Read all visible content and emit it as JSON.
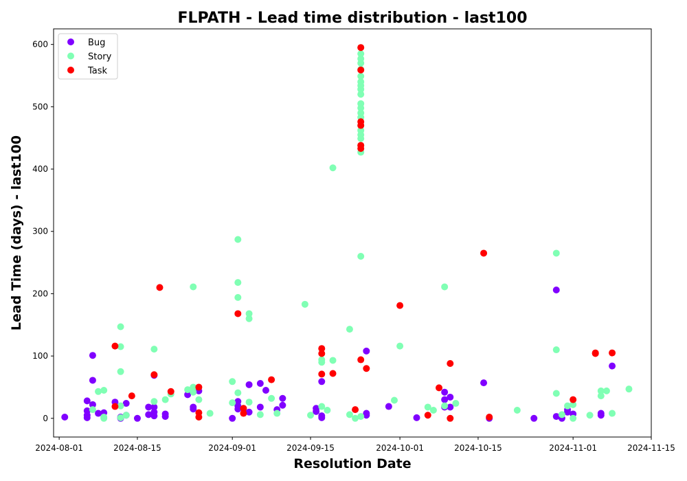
{
  "chart_data": {
    "type": "scatter",
    "title": "FLPATH - Lead time distribution - last100",
    "xlabel": "Resolution Date",
    "ylabel": "Lead Time (days) - last100",
    "x_scale": "date",
    "xlim": [
      "2024-07-31",
      "2024-11-15"
    ],
    "ylim": [
      -30,
      625
    ],
    "x_ticks": [
      "2024-08-01",
      "2024-08-15",
      "2024-09-01",
      "2024-09-15",
      "2024-10-01",
      "2024-10-15",
      "2024-11-01",
      "2024-11-15"
    ],
    "y_ticks": [
      0,
      100,
      200,
      300,
      400,
      500,
      600
    ],
    "grid": false,
    "legend_position": "top-left",
    "series": [
      {
        "name": "Bug",
        "color": "#8000ff",
        "points": [
          [
            "2024-08-02",
            2
          ],
          [
            "2024-08-06",
            28
          ],
          [
            "2024-08-06",
            12
          ],
          [
            "2024-08-06",
            5
          ],
          [
            "2024-08-06",
            1
          ],
          [
            "2024-08-07",
            101
          ],
          [
            "2024-08-07",
            61
          ],
          [
            "2024-08-07",
            22
          ],
          [
            "2024-08-08",
            8
          ],
          [
            "2024-08-09",
            9
          ],
          [
            "2024-08-11",
            26
          ],
          [
            "2024-08-12",
            2
          ],
          [
            "2024-08-12",
            0
          ],
          [
            "2024-08-13",
            24
          ],
          [
            "2024-08-13",
            5
          ],
          [
            "2024-08-15",
            0
          ],
          [
            "2024-08-17",
            18
          ],
          [
            "2024-08-17",
            6
          ],
          [
            "2024-08-18",
            4
          ],
          [
            "2024-08-18",
            10
          ],
          [
            "2024-08-18",
            18
          ],
          [
            "2024-08-18",
            69
          ],
          [
            "2024-08-20",
            7
          ],
          [
            "2024-08-20",
            3
          ],
          [
            "2024-08-24",
            38
          ],
          [
            "2024-08-25",
            15
          ],
          [
            "2024-08-25",
            18
          ],
          [
            "2024-08-26",
            44
          ],
          [
            "2024-09-01",
            0
          ],
          [
            "2024-09-02",
            27
          ],
          [
            "2024-09-02",
            15
          ],
          [
            "2024-09-02",
            20
          ],
          [
            "2024-09-04",
            54
          ],
          [
            "2024-09-04",
            10
          ],
          [
            "2024-09-06",
            56
          ],
          [
            "2024-09-06",
            18
          ],
          [
            "2024-09-07",
            45
          ],
          [
            "2024-09-09",
            14
          ],
          [
            "2024-09-10",
            32
          ],
          [
            "2024-09-10",
            21
          ],
          [
            "2024-09-16",
            16
          ],
          [
            "2024-09-16",
            11
          ],
          [
            "2024-09-17",
            59
          ],
          [
            "2024-09-17",
            4
          ],
          [
            "2024-09-17",
            1
          ],
          [
            "2024-09-25",
            108
          ],
          [
            "2024-09-25",
            8
          ],
          [
            "2024-09-25",
            5
          ],
          [
            "2024-09-29",
            19
          ],
          [
            "2024-10-04",
            1
          ],
          [
            "2024-10-09",
            42
          ],
          [
            "2024-10-09",
            30
          ],
          [
            "2024-10-09",
            18
          ],
          [
            "2024-10-10",
            34
          ],
          [
            "2024-10-10",
            18
          ],
          [
            "2024-10-16",
            57
          ],
          [
            "2024-10-17",
            0
          ],
          [
            "2024-10-25",
            0
          ],
          [
            "2024-10-29",
            206
          ],
          [
            "2024-10-29",
            3
          ],
          [
            "2024-10-30",
            0
          ],
          [
            "2024-10-31",
            14
          ],
          [
            "2024-10-31",
            10
          ],
          [
            "2024-11-01",
            7
          ],
          [
            "2024-11-06",
            8
          ],
          [
            "2024-11-06",
            5
          ],
          [
            "2024-11-08",
            84
          ]
        ]
      },
      {
        "name": "Story",
        "color": "#80ffb4",
        "points": [
          [
            "2024-08-07",
            14
          ],
          [
            "2024-08-08",
            43
          ],
          [
            "2024-08-09",
            45
          ],
          [
            "2024-08-09",
            0
          ],
          [
            "2024-08-09",
            2
          ],
          [
            "2024-08-12",
            147
          ],
          [
            "2024-08-12",
            115
          ],
          [
            "2024-08-12",
            75
          ],
          [
            "2024-08-12",
            20
          ],
          [
            "2024-08-12",
            1
          ],
          [
            "2024-08-13",
            5
          ],
          [
            "2024-08-18",
            111
          ],
          [
            "2024-08-18",
            27
          ],
          [
            "2024-08-20",
            30
          ],
          [
            "2024-08-21",
            39
          ],
          [
            "2024-08-24",
            46
          ],
          [
            "2024-08-25",
            50
          ],
          [
            "2024-08-25",
            42
          ],
          [
            "2024-08-25",
            211
          ],
          [
            "2024-08-26",
            30
          ],
          [
            "2024-08-28",
            8
          ],
          [
            "2024-09-01",
            59
          ],
          [
            "2024-09-01",
            25
          ],
          [
            "2024-09-02",
            287
          ],
          [
            "2024-09-02",
            218
          ],
          [
            "2024-09-02",
            194
          ],
          [
            "2024-09-02",
            41
          ],
          [
            "2024-09-04",
            168
          ],
          [
            "2024-09-04",
            160
          ],
          [
            "2024-09-04",
            26
          ],
          [
            "2024-09-06",
            6
          ],
          [
            "2024-09-08",
            32
          ],
          [
            "2024-09-09",
            8
          ],
          [
            "2024-09-14",
            183
          ],
          [
            "2024-09-15",
            5
          ],
          [
            "2024-09-17",
            94
          ],
          [
            "2024-09-17",
            90
          ],
          [
            "2024-09-17",
            19
          ],
          [
            "2024-09-18",
            13
          ],
          [
            "2024-09-19",
            402
          ],
          [
            "2024-09-19",
            93
          ],
          [
            "2024-09-22",
            143
          ],
          [
            "2024-09-22",
            6
          ],
          [
            "2024-09-23",
            0
          ],
          [
            "2024-09-24",
            595
          ],
          [
            "2024-09-24",
            585
          ],
          [
            "2024-09-24",
            577
          ],
          [
            "2024-09-24",
            570
          ],
          [
            "2024-09-24",
            560
          ],
          [
            "2024-09-24",
            549
          ],
          [
            "2024-09-24",
            540
          ],
          [
            "2024-09-24",
            534
          ],
          [
            "2024-09-24",
            528
          ],
          [
            "2024-09-24",
            520
          ],
          [
            "2024-09-24",
            505
          ],
          [
            "2024-09-24",
            498
          ],
          [
            "2024-09-24",
            490
          ],
          [
            "2024-09-24",
            483
          ],
          [
            "2024-09-24",
            470
          ],
          [
            "2024-09-24",
            462
          ],
          [
            "2024-09-24",
            455
          ],
          [
            "2024-09-24",
            449
          ],
          [
            "2024-09-24",
            438
          ],
          [
            "2024-09-24",
            427
          ],
          [
            "2024-09-24",
            260
          ],
          [
            "2024-09-24",
            3
          ],
          [
            "2024-09-30",
            29
          ],
          [
            "2024-10-01",
            116
          ],
          [
            "2024-10-06",
            18
          ],
          [
            "2024-10-07",
            13
          ],
          [
            "2024-10-09",
            211
          ],
          [
            "2024-10-09",
            20
          ],
          [
            "2024-10-11",
            24
          ],
          [
            "2024-10-22",
            13
          ],
          [
            "2024-10-29",
            265
          ],
          [
            "2024-10-29",
            110
          ],
          [
            "2024-10-29",
            40
          ],
          [
            "2024-10-30",
            6
          ],
          [
            "2024-10-31",
            20
          ],
          [
            "2024-11-01",
            22
          ],
          [
            "2024-11-01",
            0
          ],
          [
            "2024-11-04",
            5
          ],
          [
            "2024-11-06",
            36
          ],
          [
            "2024-11-06",
            44
          ],
          [
            "2024-11-07",
            44
          ],
          [
            "2024-11-08",
            8
          ],
          [
            "2024-11-11",
            47
          ]
        ]
      },
      {
        "name": "Task",
        "color": "#ff0000",
        "points": [
          [
            "2024-08-11",
            116
          ],
          [
            "2024-08-11",
            19
          ],
          [
            "2024-08-14",
            36
          ],
          [
            "2024-08-18",
            70
          ],
          [
            "2024-08-19",
            210
          ],
          [
            "2024-08-21",
            43
          ],
          [
            "2024-08-26",
            50
          ],
          [
            "2024-08-26",
            9
          ],
          [
            "2024-08-26",
            2
          ],
          [
            "2024-09-02",
            168
          ],
          [
            "2024-09-03",
            16
          ],
          [
            "2024-09-03",
            8
          ],
          [
            "2024-09-08",
            62
          ],
          [
            "2024-09-17",
            112
          ],
          [
            "2024-09-17",
            104
          ],
          [
            "2024-09-17",
            71
          ],
          [
            "2024-09-19",
            72
          ],
          [
            "2024-09-23",
            14
          ],
          [
            "2024-09-24",
            595
          ],
          [
            "2024-09-24",
            559
          ],
          [
            "2024-09-24",
            476
          ],
          [
            "2024-09-24",
            470
          ],
          [
            "2024-09-24",
            438
          ],
          [
            "2024-09-24",
            433
          ],
          [
            "2024-09-24",
            94
          ],
          [
            "2024-09-25",
            80
          ],
          [
            "2024-10-01",
            181
          ],
          [
            "2024-10-06",
            5
          ],
          [
            "2024-10-08",
            49
          ],
          [
            "2024-10-10",
            88
          ],
          [
            "2024-10-10",
            0
          ],
          [
            "2024-10-16",
            265
          ],
          [
            "2024-10-17",
            2
          ],
          [
            "2024-11-01",
            30
          ],
          [
            "2024-11-05",
            105
          ],
          [
            "2024-11-05",
            104
          ],
          [
            "2024-11-08",
            105
          ]
        ]
      }
    ]
  }
}
